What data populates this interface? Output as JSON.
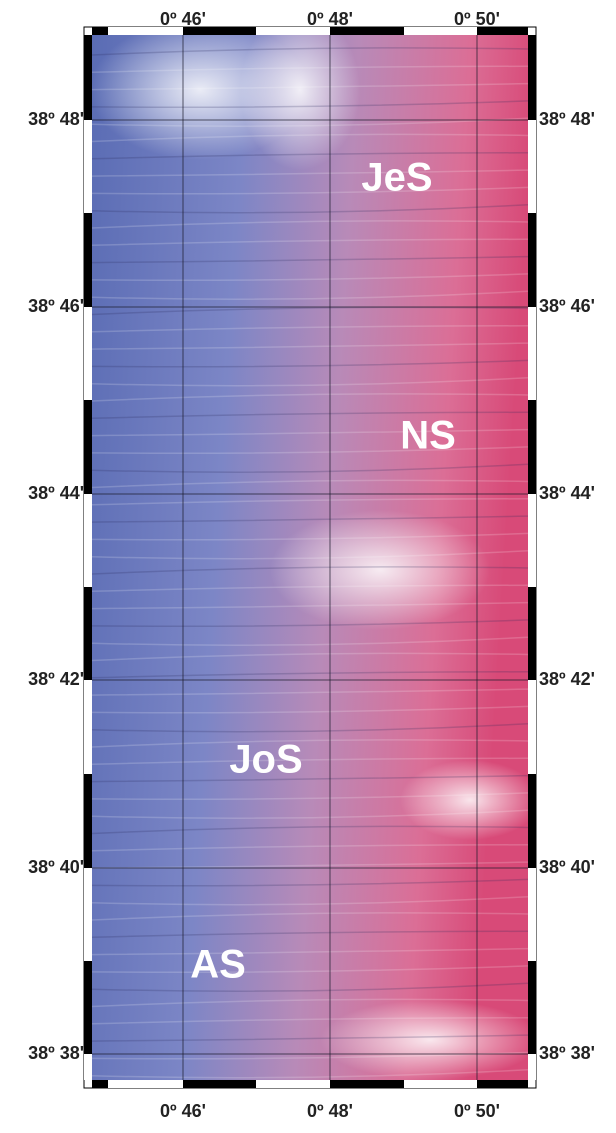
{
  "map": {
    "top_labels": [
      "0º 46'",
      "0º 48'",
      "0º 50'"
    ],
    "bottom_labels": [
      "0º 46'",
      "0º 48'",
      "0º 50'"
    ],
    "left_labels": [
      "38º 48'",
      "38º 46'",
      "38º 44'",
      "38º 42'",
      "38º 40'",
      "38º 38'"
    ],
    "right_labels": [
      "38º 48'",
      "38º 46'",
      "38º 44'",
      "38º 42'",
      "38º 40'",
      "38º 38'"
    ],
    "regions": [
      "JeS",
      "NS",
      "JoS",
      "AS"
    ]
  }
}
